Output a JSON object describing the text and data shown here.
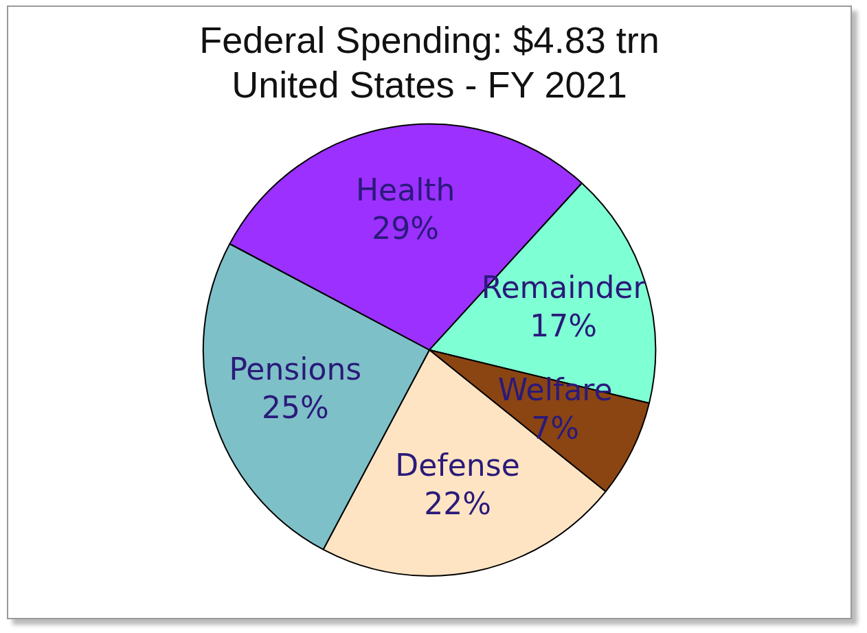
{
  "chart_data": {
    "type": "pie",
    "title": "Federal Spending: $4.83 trn",
    "subtitle": "United States - FY 2021",
    "categories": [
      "Health",
      "Remainder",
      "Welfare",
      "Defense",
      "Pensions"
    ],
    "values": [
      29,
      17,
      7,
      22,
      25
    ],
    "colors": [
      "#9b30ff",
      "#7fffd4",
      "#8b4513",
      "#ffe4c4",
      "#7ec0c8"
    ],
    "value_labels": [
      "29%",
      "17%",
      "7%",
      "22%",
      "25%"
    ],
    "legend": false
  }
}
